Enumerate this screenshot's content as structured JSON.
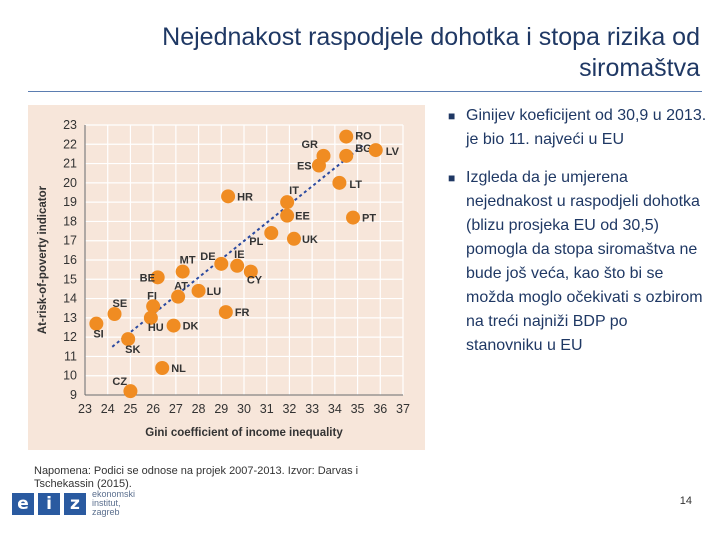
{
  "slide": {
    "title_line1": "Nejednakost raspodjele dohotka i stopa rizika od",
    "title_line2": "siromaštva",
    "bullets": [
      "Ginijev koeficijent od 30,9 u 2013. je bio 11. najveći u EU",
      "Izgleda da je umjerena nejednakost u raspodjeli dohotka (blizu prosjeka EU od 30,5) pomogla da stopa siromaštva ne bude još veća, kao što bi se možda moglo očekivati s ozbirom na treći najniži BDP po stanovniku u EU"
    ],
    "footnote": "Napomena: Podici se odnose na projek 2007-2013. Izvor: Darvas  i Tschekassin (2015).",
    "page_number": "14",
    "logo": {
      "letters": [
        "e",
        "i",
        "z"
      ],
      "line1": "ekonomski",
      "line2": "institut,",
      "line3": "zagreb"
    }
  },
  "colors": {
    "point": "#f08c22",
    "trend": "#2b4aa0",
    "chart_bg": "#f7e6da",
    "title": "#1f3864"
  },
  "chart_data": {
    "type": "scatter",
    "title": "",
    "xlabel": "Gini coefficient of income inequality",
    "ylabel": "At-risk-of-poverty indicator",
    "xlim": [
      23,
      37
    ],
    "ylim": [
      9,
      23
    ],
    "xticks": [
      23,
      24,
      25,
      26,
      27,
      28,
      29,
      30,
      31,
      32,
      33,
      34,
      35,
      36,
      37
    ],
    "yticks": [
      9,
      10,
      11,
      12,
      13,
      14,
      15,
      16,
      17,
      18,
      19,
      20,
      21,
      22,
      23
    ],
    "grid": true,
    "trendline": {
      "x": [
        24.2,
        35.3
      ],
      "y": [
        11.5,
        22.0
      ]
    },
    "points": [
      {
        "label": "RO",
        "x": 34.5,
        "y": 22.4
      },
      {
        "label": "BG",
        "x": 34.5,
        "y": 21.4
      },
      {
        "label": "LV",
        "x": 35.8,
        "y": 21.7
      },
      {
        "label": "GR",
        "x": 33.5,
        "y": 21.4
      },
      {
        "label": "ES",
        "x": 33.3,
        "y": 20.9
      },
      {
        "label": "LT",
        "x": 34.2,
        "y": 20.0
      },
      {
        "label": "HR",
        "x": 29.3,
        "y": 19.3
      },
      {
        "label": "IT",
        "x": 31.9,
        "y": 19.0
      },
      {
        "label": "EE",
        "x": 31.9,
        "y": 18.3
      },
      {
        "label": "PT",
        "x": 34.8,
        "y": 18.2
      },
      {
        "label": "PL",
        "x": 31.2,
        "y": 17.4
      },
      {
        "label": "UK",
        "x": 32.2,
        "y": 17.1
      },
      {
        "label": "DE",
        "x": 29.0,
        "y": 15.8
      },
      {
        "label": "IE",
        "x": 29.7,
        "y": 15.7
      },
      {
        "label": "CY",
        "x": 30.3,
        "y": 15.4
      },
      {
        "label": "MT",
        "x": 27.3,
        "y": 15.4
      },
      {
        "label": "BE",
        "x": 26.2,
        "y": 15.1
      },
      {
        "label": "AT",
        "x": 27.1,
        "y": 14.1
      },
      {
        "label": "LU",
        "x": 28.0,
        "y": 14.4
      },
      {
        "label": "FI",
        "x": 26.0,
        "y": 13.6
      },
      {
        "label": "FR",
        "x": 29.2,
        "y": 13.3
      },
      {
        "label": "NL",
        "x": 26.4,
        "y": 10.4
      },
      {
        "label": "DK",
        "x": 26.9,
        "y": 12.6
      },
      {
        "label": "HU",
        "x": 25.9,
        "y": 13.0
      },
      {
        "label": "SE",
        "x": 24.3,
        "y": 13.2
      },
      {
        "label": "SI",
        "x": 23.5,
        "y": 12.7
      },
      {
        "label": "SK",
        "x": 24.9,
        "y": 11.9
      },
      {
        "label": "CZ",
        "x": 25.0,
        "y": 9.2
      }
    ]
  }
}
